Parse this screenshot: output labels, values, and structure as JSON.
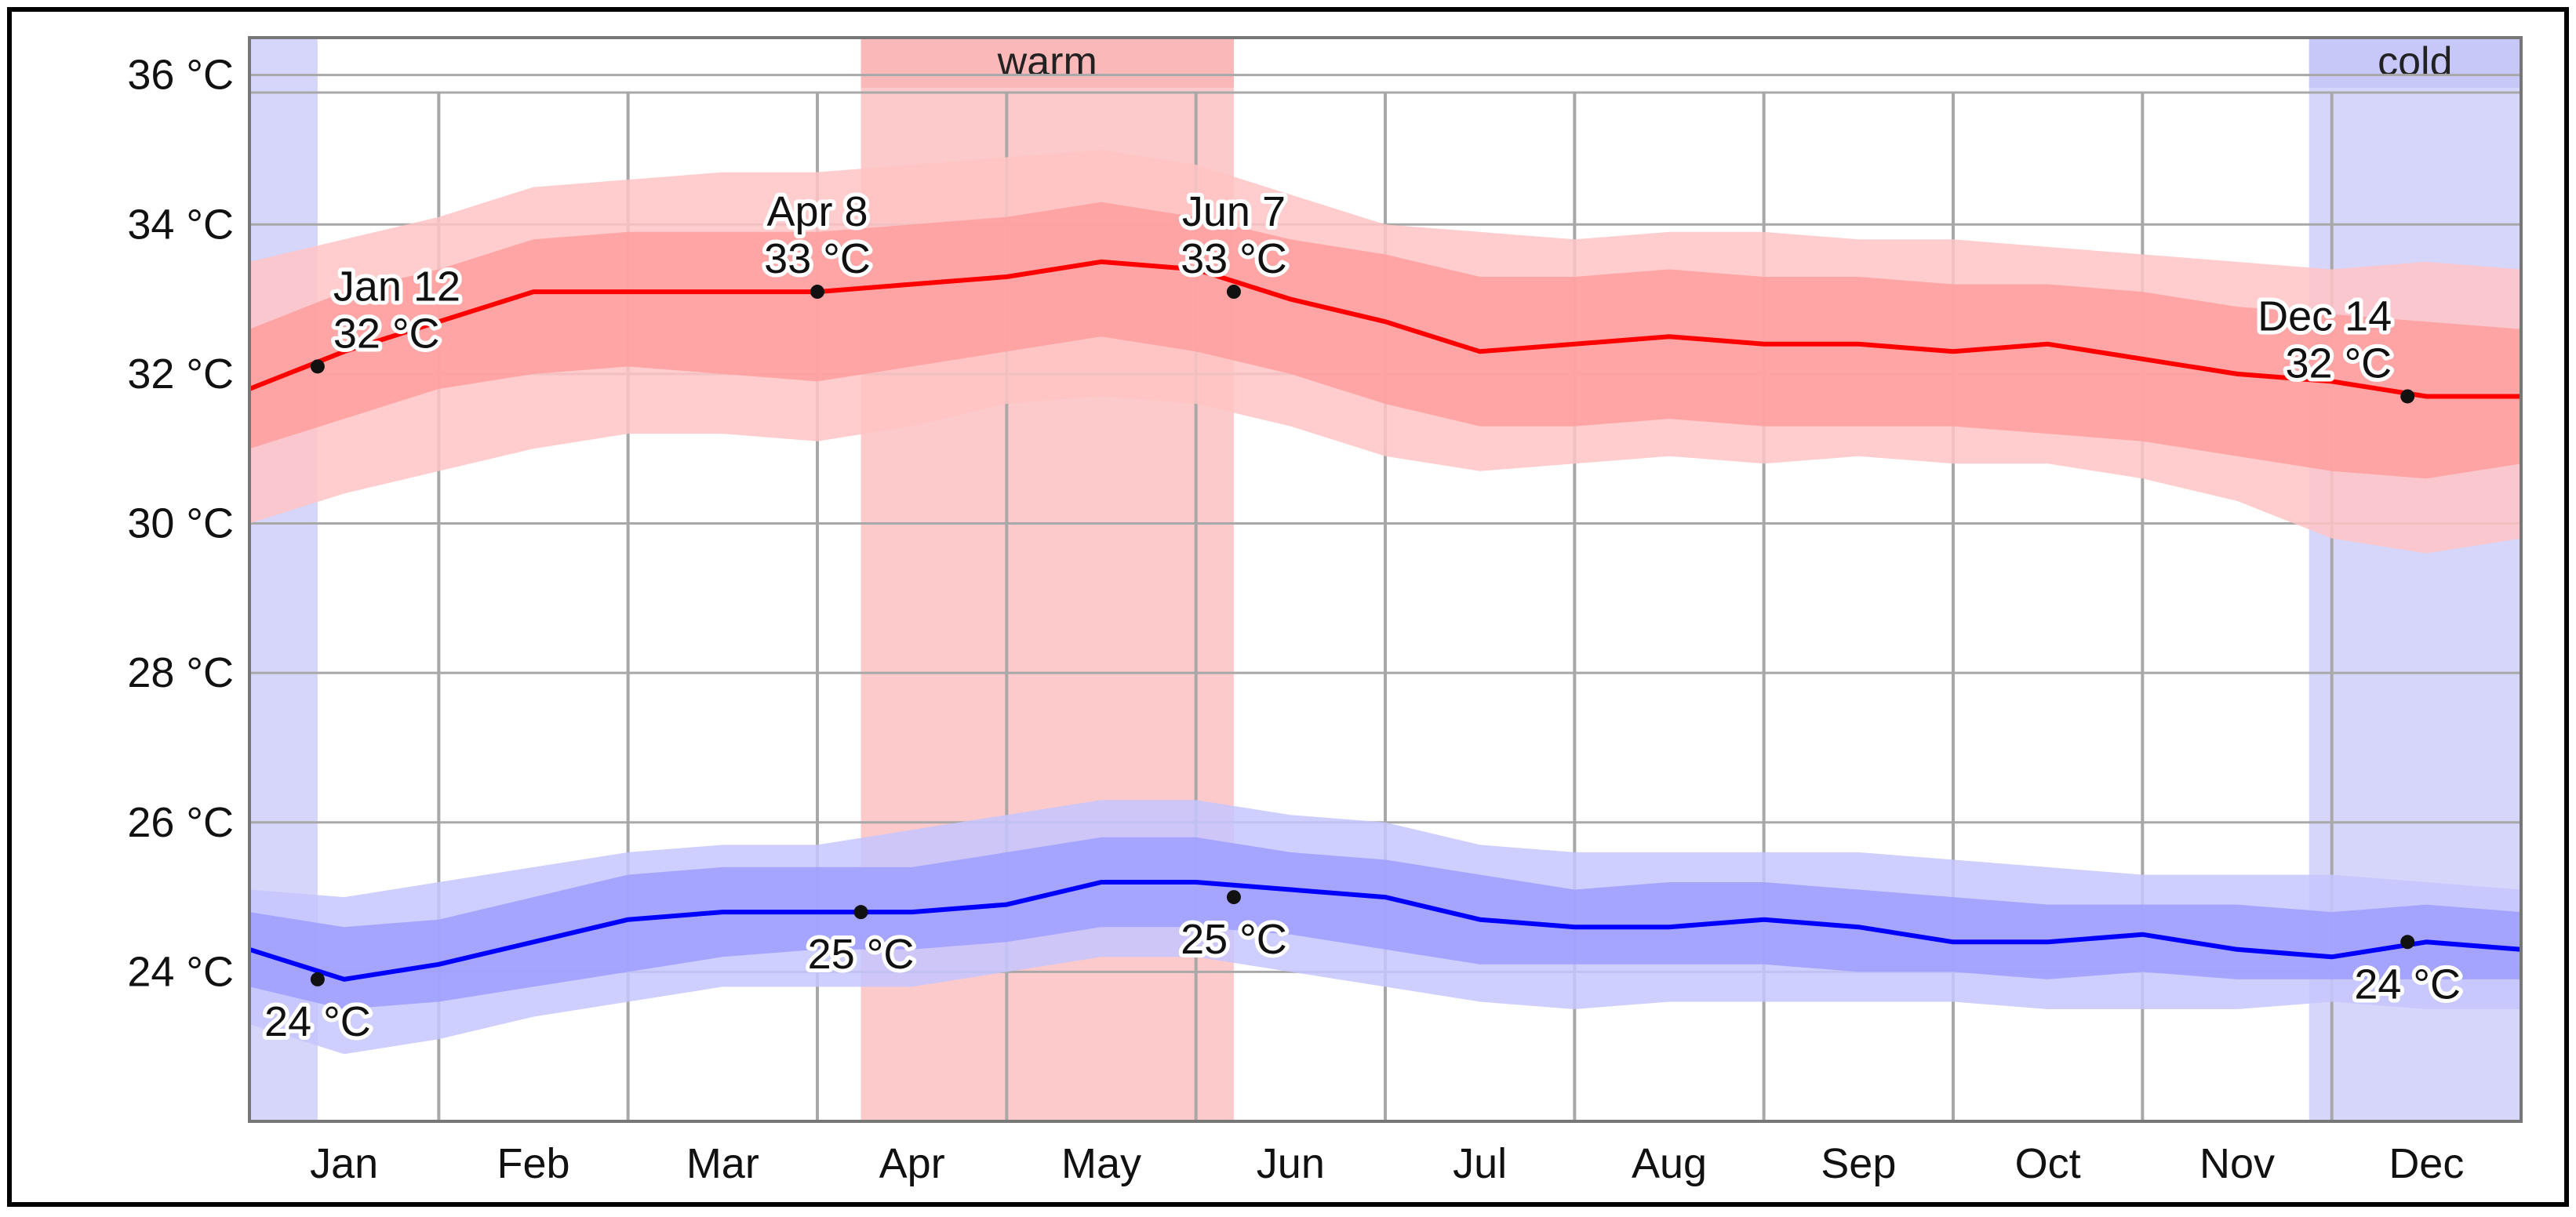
{
  "chart_data": {
    "type": "line",
    "title": "",
    "xlabel": "",
    "ylabel": "",
    "x_domain": [
      0,
      12
    ],
    "ylim": [
      22.0,
      36.5
    ],
    "yticks": [
      {
        "value": 24,
        "label": "24 °C"
      },
      {
        "value": 26,
        "label": "26 °C"
      },
      {
        "value": 28,
        "label": "28 °C"
      },
      {
        "value": 30,
        "label": "30 °C"
      },
      {
        "value": 32,
        "label": "32 °C"
      },
      {
        "value": 34,
        "label": "34 °C"
      },
      {
        "value": 36,
        "label": "36 °C"
      }
    ],
    "months": [
      "Jan",
      "Feb",
      "Mar",
      "Apr",
      "May",
      "Jun",
      "Jul",
      "Aug",
      "Sep",
      "Oct",
      "Nov",
      "Dec"
    ],
    "month_boundaries": [
      1.0,
      2.0,
      3.0,
      4.0,
      5.0,
      6.0,
      7.0,
      8.0,
      9.0,
      10.0,
      11.0
    ],
    "grid": true,
    "seasons": [
      {
        "name": "warm",
        "label": "warm",
        "start": 3.23,
        "end": 5.2,
        "color": "#fbb8b8"
      },
      {
        "name": "cold",
        "label": "cold",
        "start": 10.88,
        "end": 12.0,
        "color": "#c8c8f8"
      },
      {
        "name": "cold-tail",
        "label": "",
        "start": 0.0,
        "end": 0.36,
        "color": "#c8c8f8"
      }
    ],
    "colors": {
      "high_line": "#ff0000",
      "low_line": "#0000ff",
      "high_band_outer": "#ffc4c4",
      "high_band_inner": "#ff9e9e",
      "low_band_outer": "#c6c6ff",
      "low_band_inner": "#9e9eff",
      "gridline": "#a8a8a8",
      "border": "#777777"
    },
    "x": [
      0,
      0.5,
      1.0,
      1.5,
      2.0,
      2.5,
      3.0,
      3.5,
      4.0,
      4.5,
      5.0,
      5.5,
      6.0,
      6.5,
      7.0,
      7.5,
      8.0,
      8.5,
      9.0,
      9.5,
      10.0,
      10.5,
      11.0,
      11.5,
      12.0
    ],
    "series": [
      {
        "name": "Average high",
        "values": [
          31.8,
          32.3,
          32.7,
          33.1,
          33.1,
          33.1,
          33.1,
          33.2,
          33.3,
          33.5,
          33.4,
          33.0,
          32.7,
          32.3,
          32.4,
          32.5,
          32.4,
          32.4,
          32.3,
          32.4,
          32.2,
          32.0,
          31.9,
          31.7,
          31.7
        ],
        "p25": [
          31.0,
          31.4,
          31.8,
          32.0,
          32.1,
          32.0,
          31.9,
          32.1,
          32.3,
          32.5,
          32.3,
          32.0,
          31.6,
          31.3,
          31.3,
          31.4,
          31.3,
          31.3,
          31.3,
          31.2,
          31.1,
          30.9,
          30.7,
          30.6,
          30.8
        ],
        "p75": [
          32.6,
          33.1,
          33.4,
          33.8,
          33.9,
          33.9,
          33.9,
          34.0,
          34.1,
          34.3,
          34.1,
          33.8,
          33.6,
          33.3,
          33.3,
          33.4,
          33.3,
          33.3,
          33.2,
          33.2,
          33.1,
          32.9,
          32.8,
          32.7,
          32.6
        ],
        "p10": [
          30.0,
          30.4,
          30.7,
          31.0,
          31.2,
          31.2,
          31.1,
          31.3,
          31.6,
          31.7,
          31.6,
          31.3,
          30.9,
          30.7,
          30.8,
          30.9,
          30.8,
          30.9,
          30.8,
          30.8,
          30.6,
          30.3,
          29.8,
          29.6,
          29.8
        ],
        "p90": [
          33.5,
          33.8,
          34.1,
          34.5,
          34.6,
          34.7,
          34.7,
          34.8,
          34.9,
          35.0,
          34.8,
          34.4,
          34.0,
          33.9,
          33.8,
          33.9,
          33.9,
          33.8,
          33.8,
          33.7,
          33.6,
          33.5,
          33.4,
          33.5,
          33.4
        ]
      },
      {
        "name": "Average low",
        "values": [
          24.3,
          23.9,
          24.1,
          24.4,
          24.7,
          24.8,
          24.8,
          24.8,
          24.9,
          25.2,
          25.2,
          25.1,
          25.0,
          24.7,
          24.6,
          24.6,
          24.7,
          24.6,
          24.4,
          24.4,
          24.5,
          24.3,
          24.2,
          24.4,
          24.3
        ],
        "p25": [
          23.8,
          23.5,
          23.6,
          23.8,
          24.0,
          24.2,
          24.3,
          24.3,
          24.4,
          24.6,
          24.6,
          24.5,
          24.3,
          24.1,
          24.1,
          24.1,
          24.1,
          24.0,
          24.0,
          23.9,
          24.0,
          23.9,
          23.9,
          23.9,
          23.9
        ],
        "p75": [
          24.8,
          24.6,
          24.7,
          25.0,
          25.3,
          25.4,
          25.4,
          25.4,
          25.6,
          25.8,
          25.8,
          25.6,
          25.5,
          25.3,
          25.1,
          25.2,
          25.2,
          25.1,
          25.0,
          24.9,
          24.9,
          24.9,
          24.8,
          24.9,
          24.8
        ],
        "p10": [
          23.3,
          22.9,
          23.1,
          23.4,
          23.6,
          23.8,
          23.8,
          23.8,
          24.0,
          24.2,
          24.2,
          24.0,
          23.8,
          23.6,
          23.5,
          23.6,
          23.6,
          23.6,
          23.6,
          23.5,
          23.5,
          23.5,
          23.6,
          23.5,
          23.5
        ],
        "p90": [
          25.1,
          25.0,
          25.2,
          25.4,
          25.6,
          25.7,
          25.7,
          25.9,
          26.1,
          26.3,
          26.3,
          26.1,
          26.0,
          25.7,
          25.6,
          25.6,
          25.6,
          25.6,
          25.5,
          25.4,
          25.3,
          25.3,
          25.3,
          25.2,
          25.1
        ]
      }
    ],
    "annotations": [
      {
        "series": "Average high",
        "x": 0.36,
        "y": 32.1,
        "lines": [
          "Jan 12",
          "32 °C"
        ],
        "placement": "above-right"
      },
      {
        "series": "Average high",
        "x": 3.0,
        "y": 33.1,
        "lines": [
          "Apr 8",
          "33 °C"
        ],
        "placement": "above"
      },
      {
        "series": "Average high",
        "x": 5.2,
        "y": 33.1,
        "lines": [
          "Jun 7",
          "33 °C"
        ],
        "placement": "above"
      },
      {
        "series": "Average high",
        "x": 11.4,
        "y": 31.7,
        "lines": [
          "Dec 14",
          "32 °C"
        ],
        "placement": "above-left"
      },
      {
        "series": "Average low",
        "x": 0.36,
        "y": 23.9,
        "lines": [
          "24 °C"
        ],
        "placement": "below"
      },
      {
        "series": "Average low",
        "x": 3.23,
        "y": 24.8,
        "lines": [
          "25 °C"
        ],
        "placement": "below"
      },
      {
        "series": "Average low",
        "x": 5.2,
        "y": 25.0,
        "lines": [
          "25 °C"
        ],
        "placement": "below"
      },
      {
        "series": "Average low",
        "x": 11.4,
        "y": 24.4,
        "lines": [
          "24 °C"
        ],
        "placement": "below"
      }
    ]
  }
}
